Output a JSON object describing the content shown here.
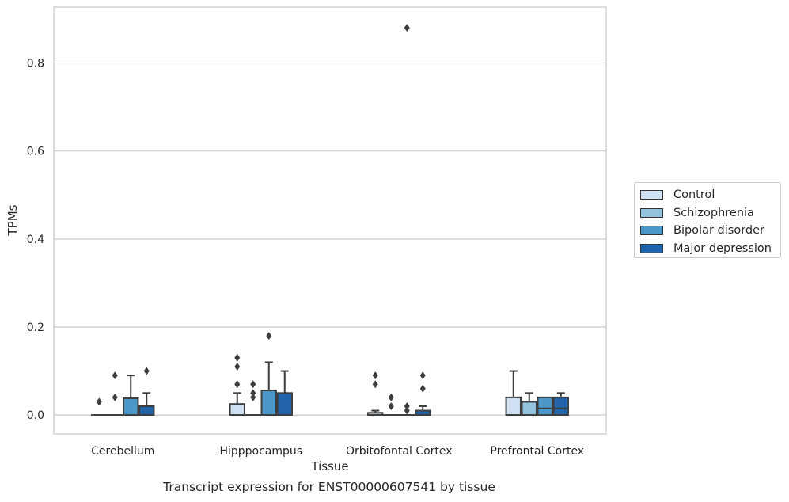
{
  "caption": "Transcript expression for ENST00000607541 by tissue",
  "chart_data": {
    "type": "box",
    "xlabel": "Tissue",
    "ylabel": "TPMs",
    "ylim": [
      -0.043,
      0.927
    ],
    "yticks": [
      0.0,
      0.2,
      0.4,
      0.6,
      0.8
    ],
    "ytick_labels": [
      "0.0",
      "0.2",
      "0.4",
      "0.6",
      "0.8"
    ],
    "grid": "horizontal",
    "legend_position": "right",
    "categories": [
      "Cerebellum",
      "Hipppocampus",
      "Orbitofontal Cortex",
      "Prefrontal Cortex"
    ],
    "series": [
      {
        "name": "Control",
        "color": "#cfe1f2",
        "boxes": [
          {
            "q1": 0,
            "median": 0,
            "q3": 0,
            "whisker_low": 0,
            "whisker_high": 0,
            "outliers": [
              0.03
            ]
          },
          {
            "q1": 0,
            "median": 0,
            "q3": 0.025,
            "whisker_low": 0,
            "whisker_high": 0.05,
            "outliers": [
              0.07,
              0.11,
              0.13
            ]
          },
          {
            "q1": 0,
            "median": 0,
            "q3": 0.005,
            "whisker_low": 0,
            "whisker_high": 0.01,
            "outliers": [
              0.07,
              0.09
            ]
          },
          {
            "q1": 0,
            "median": 0,
            "q3": 0.04,
            "whisker_low": 0,
            "whisker_high": 0.1,
            "outliers": []
          }
        ]
      },
      {
        "name": "Schizophrenia",
        "color": "#93c3df",
        "boxes": [
          {
            "q1": 0,
            "median": 0,
            "q3": 0,
            "whisker_low": 0,
            "whisker_high": 0,
            "outliers": [
              0.04,
              0.09
            ]
          },
          {
            "q1": 0,
            "median": 0,
            "q3": 0,
            "whisker_low": 0,
            "whisker_high": 0,
            "outliers": [
              0.04,
              0.05,
              0.07
            ]
          },
          {
            "q1": 0,
            "median": 0,
            "q3": 0,
            "whisker_low": 0,
            "whisker_high": 0,
            "outliers": [
              0.02,
              0.04
            ]
          },
          {
            "q1": 0,
            "median": 0,
            "q3": 0.03,
            "whisker_low": 0,
            "whisker_high": 0.05,
            "outliers": []
          }
        ]
      },
      {
        "name": "Bipolar disorder",
        "color": "#4a98c9",
        "boxes": [
          {
            "q1": 0,
            "median": 0,
            "q3": 0.038,
            "whisker_low": 0,
            "whisker_high": 0.09,
            "outliers": []
          },
          {
            "q1": 0,
            "median": 0,
            "q3": 0.056,
            "whisker_low": 0,
            "whisker_high": 0.12,
            "outliers": [
              0.18
            ]
          },
          {
            "q1": 0,
            "median": 0,
            "q3": 0,
            "whisker_low": 0,
            "whisker_high": 0,
            "outliers": [
              0.01,
              0.02,
              0.88
            ]
          },
          {
            "q1": 0,
            "median": 0.015,
            "q3": 0.04,
            "whisker_low": 0,
            "whisker_high": 0.04,
            "outliers": []
          }
        ]
      },
      {
        "name": "Major depression",
        "color": "#2164aa",
        "boxes": [
          {
            "q1": 0,
            "median": 0,
            "q3": 0.02,
            "whisker_low": 0,
            "whisker_high": 0.05,
            "outliers": [
              0.1
            ]
          },
          {
            "q1": 0,
            "median": 0,
            "q3": 0.05,
            "whisker_low": 0,
            "whisker_high": 0.1,
            "outliers": []
          },
          {
            "q1": 0,
            "median": 0,
            "q3": 0.01,
            "whisker_low": 0,
            "whisker_high": 0.02,
            "outliers": [
              0.06,
              0.09
            ]
          },
          {
            "q1": 0,
            "median": 0.015,
            "q3": 0.04,
            "whisker_low": 0,
            "whisker_high": 0.05,
            "outliers": []
          }
        ]
      }
    ]
  }
}
